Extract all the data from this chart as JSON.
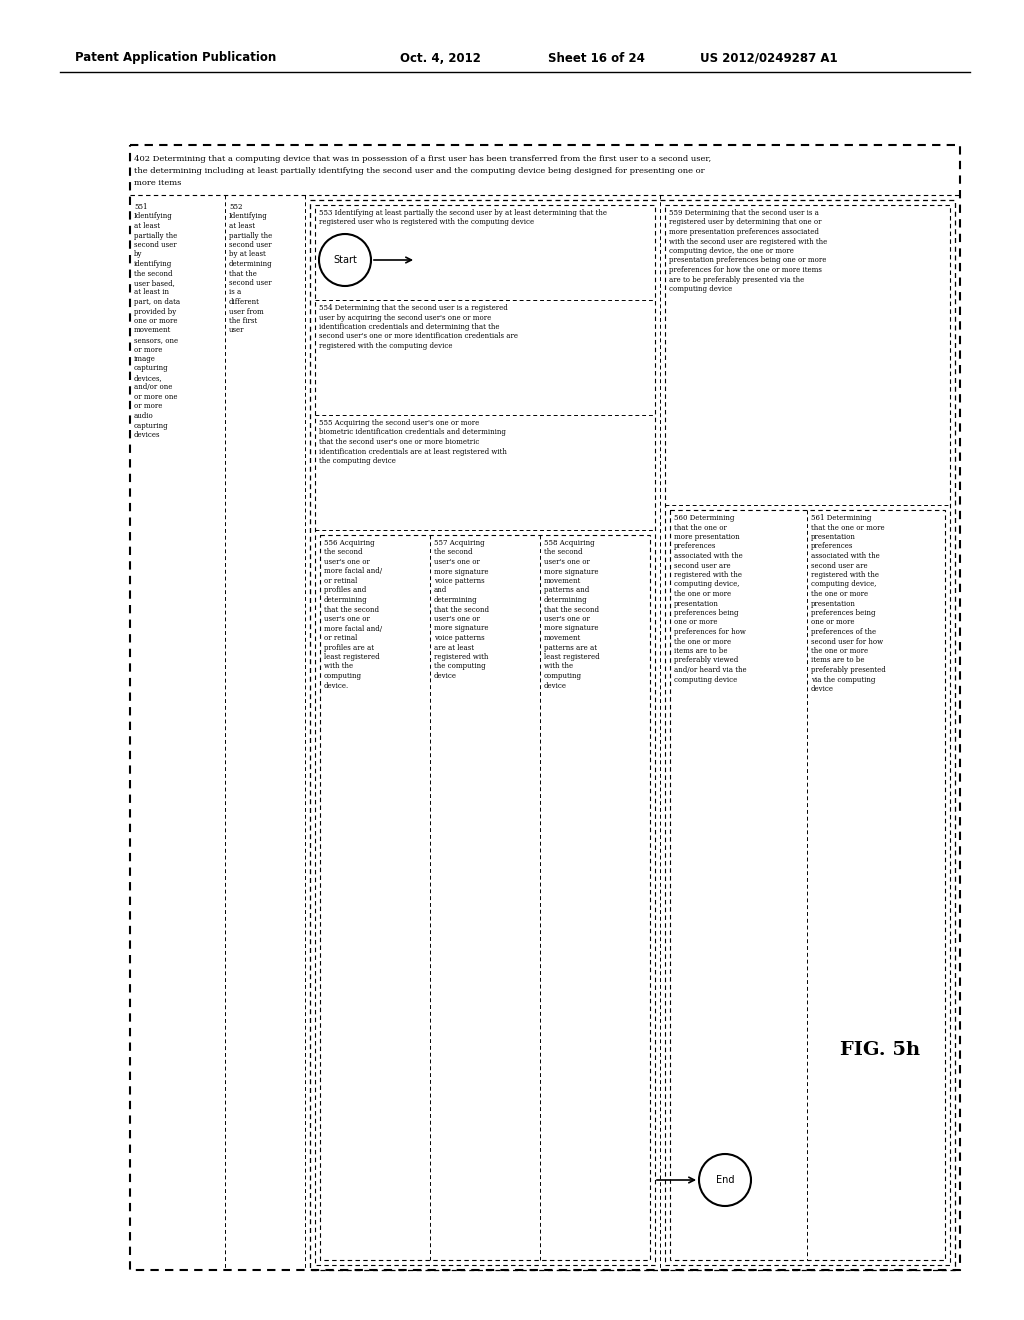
{
  "title_left": "Patent Application Publication",
  "title_date": "Oct. 4, 2012",
  "title_sheet": "Sheet 16 of 24",
  "title_patent": "US 2012/0249287 A1",
  "fig_label": "FIG. 5h",
  "background_color": "#ffffff",
  "start_label": "Start",
  "end_label": "End",
  "header_line1": "402 Determining that a computing device that was in possession of a first user has been transferred from the first user to a second user,",
  "header_line2": "the determining including at least partially identifying the second user and the computing device being designed for presenting one or",
  "header_line3": "more items",
  "col0_text": "551\nIdentifying\nat least\npartially the\nsecond user\nby\nidentifying\nthe second\nuser based,\nat least in\npart, on data\nprovided by\none or more\nmovement\nsensors, one\nor more\nimage\ncapturing\ndevices,\nand/or one\nor more one\nor more\naudio\ncapturing\ndevices",
  "col1_text": "552\nIdentifying\nat least\npartially the\nsecond user\nby at least\ndetermining\nthat the\nsecond user\nis a\ndifferent\nuser from\nthe first\nuser",
  "col2a_text": "553 Identifying at least partially the second user by at least determining that the\nregistered user who is registered with the computing device",
  "col2b_text": "554 Determining that the second user is a registered\nuser by acquiring the second user's one or more\nidentification credentials and determining that the\nsecond user's one or more identification credentials are\nregistered with the computing device",
  "col2c_text": "555 Acquiring the second user's one or more\nbiometric identification credentials and determining\nthat the second user's one or more biometric\nidentification credentials are at least registered with\nthe computing device",
  "col2d_text": "556 Acquiring\nthe second\nuser's one or\nmore facial and/\nor retinal\nprofiles and\ndetermining\nthat the second\nuser's one or\nmore facial and/\nor retinal\nprofiles are at\nleast registered\nwith the\ncomputing\ndevice.",
  "col2e_text": "557 Acquiring\nthe second\nuser's one or\nmore signature\nvoice patterns\nand\ndetermining\nthat the second\nuser's one or\nmore signature\nvoice patterns\nare at least\nregistered with\nthe computing\ndevice",
  "col2f_text": "558 Acquiring\nthe second\nuser's one or\nmore signature\nmovement\npatterns and\ndetermining\nthat the second\nuser's one or\nmore signature\nmovement\npatterns are at\nleast registered\nwith the\ncomputing\ndevice",
  "col3a_text": "559 Determining that the second user is a\nregistered user by determining that one or\nmore presentation preferences associated\nwith the second user are registered with the\ncomputing device, the one or more\npresentation preferences being one or more\npreferences for how the one or more items\nare to be preferably presented via the\ncomputing device",
  "col3b_text": "560 Determining\nthat the one or\nmore presentation\npreferences\nassociated with the\nsecond user are\nregistered with the\ncomputing device,\nthe one or more\npresentation\npreferences being\none or more\npreferences for how\nthe one or more\nitems are to be\npreferably viewed\nand/or heard via the\ncomputing device",
  "col3c_text": "561 Determining\nthat the one or more\npresentation\npreferences\nassociated with the\nsecond user are\nregistered with the\ncomputing device,\nthe one or more\npresentation\npreferences being\none or more\npreferences of the\nsecond user for how\nthe one or more\nitems are to be\npreferably presented\nvia the computing\ndevice"
}
